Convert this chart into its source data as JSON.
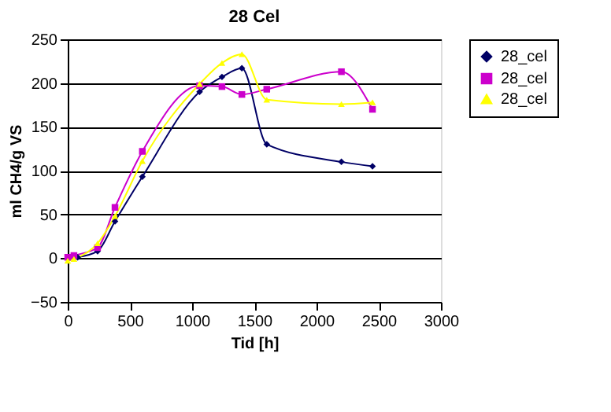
{
  "chart_data": {
    "type": "line",
    "title": "28 Cel",
    "xlabel": "Tid [h]",
    "ylabel": "ml CH4/g VS",
    "xlim": [
      0,
      3000
    ],
    "xticks": [
      0,
      500,
      1000,
      1500,
      2000,
      2500,
      3000
    ],
    "ylim": [
      -50,
      250
    ],
    "yticks": [
      -50,
      0,
      50,
      100,
      150,
      200,
      250
    ],
    "grid": "y",
    "legend": "right",
    "series": [
      {
        "name": "28_cel",
        "color": "#000066",
        "marker": "diamond",
        "x": [
          0,
          80,
          240,
          380,
          600,
          1060,
          1240,
          1400,
          1600,
          2200,
          2450
        ],
        "values": [
          0,
          1,
          8,
          42,
          93,
          190,
          207,
          217,
          130,
          110,
          105
        ]
      },
      {
        "name": "28_cel",
        "color": "#cc00cc",
        "marker": "square",
        "x": [
          0,
          50,
          240,
          380,
          600,
          1060,
          1240,
          1400,
          1600,
          2200,
          2450
        ],
        "values": [
          1,
          3,
          12,
          58,
          122,
          197,
          196,
          187,
          193,
          213,
          170
        ]
      },
      {
        "name": "28_cel",
        "color": "#ffff00",
        "marker": "triangle",
        "x": [
          0,
          50,
          240,
          380,
          600,
          1060,
          1240,
          1400,
          1600,
          2200,
          2450
        ],
        "values": [
          -3,
          -1,
          17,
          48,
          111,
          199,
          223,
          233,
          181,
          176,
          178
        ]
      }
    ]
  }
}
